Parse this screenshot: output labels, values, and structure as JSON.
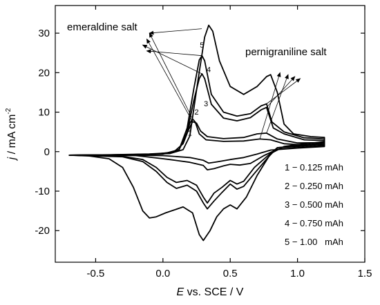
{
  "chart_data": {
    "type": "line",
    "xlabel": {
      "italic": "E",
      "rest": " vs. SCE / V"
    },
    "ylabel": {
      "italic": "j",
      "rest": " / mA cm",
      "sup": "-2"
    },
    "xlim": [
      -0.8,
      1.5
    ],
    "ylim": [
      -28,
      37
    ],
    "xticks": [
      -0.5,
      0.0,
      0.5,
      1.0,
      1.5
    ],
    "xtick_labels": [
      "-0.5",
      "0.0",
      "0.5",
      "1.0",
      "1.5"
    ],
    "yticks": [
      -20,
      -10,
      0,
      10,
      20,
      30
    ],
    "ytick_labels": [
      "-20",
      "-10",
      "0",
      "10",
      "20",
      "30"
    ],
    "annotations": {
      "emeraldine": "emeraldine salt",
      "pernigraniline": "pernigraniline salt"
    },
    "legend": [
      "1 − 0.125 mAh",
      "2 − 0.250 mAh",
      "3 − 0.500 mAh",
      "4 − 0.750 mAh",
      "5 − 1.00   mAh"
    ],
    "series": [
      {
        "name": "1",
        "anodic": [
          [
            -0.7,
            -0.9
          ],
          [
            -0.4,
            -0.8
          ],
          [
            -0.1,
            -0.6
          ],
          [
            0.05,
            -0.3
          ],
          [
            0.12,
            0.5
          ],
          [
            0.17,
            4.0
          ],
          [
            0.2,
            7.2
          ],
          [
            0.22,
            8.3
          ],
          [
            0.24,
            7.5
          ],
          [
            0.27,
            4.5
          ],
          [
            0.32,
            3.0
          ],
          [
            0.45,
            2.6
          ],
          [
            0.6,
            2.7
          ],
          [
            0.72,
            3.2
          ],
          [
            0.8,
            3.0
          ],
          [
            0.9,
            2.0
          ],
          [
            1.05,
            1.7
          ],
          [
            1.2,
            1.8
          ]
        ],
        "cathodic": [
          [
            1.2,
            1.3
          ],
          [
            1.0,
            0.9
          ],
          [
            0.8,
            0.4
          ],
          [
            0.7,
            -0.6
          ],
          [
            0.6,
            -1.5
          ],
          [
            0.5,
            -2.0
          ],
          [
            0.4,
            -2.6
          ],
          [
            0.34,
            -2.9
          ],
          [
            0.3,
            -2.2
          ],
          [
            0.2,
            -1.5
          ],
          [
            0.0,
            -1.0
          ],
          [
            -0.3,
            -0.9
          ],
          [
            -0.7,
            -0.9
          ]
        ]
      },
      {
        "name": "2",
        "anodic": [
          [
            -0.7,
            -0.9
          ],
          [
            -0.3,
            -0.8
          ],
          [
            -0.05,
            -0.6
          ],
          [
            0.08,
            -0.1
          ],
          [
            0.15,
            2.0
          ],
          [
            0.19,
            5.5
          ],
          [
            0.22,
            7.6
          ],
          [
            0.25,
            7.2
          ],
          [
            0.28,
            5.2
          ],
          [
            0.33,
            3.8
          ],
          [
            0.45,
            3.3
          ],
          [
            0.6,
            3.6
          ],
          [
            0.7,
            4.5
          ],
          [
            0.77,
            4.7
          ],
          [
            0.85,
            3.2
          ],
          [
            1.0,
            2.2
          ],
          [
            1.2,
            2.3
          ]
        ],
        "cathodic": [
          [
            1.2,
            1.6
          ],
          [
            1.0,
            1.0
          ],
          [
            0.85,
            0.6
          ],
          [
            0.75,
            -1.0
          ],
          [
            0.65,
            -3.0
          ],
          [
            0.57,
            -3.4
          ],
          [
            0.5,
            -3.2
          ],
          [
            0.45,
            -3.6
          ],
          [
            0.38,
            -4.3
          ],
          [
            0.33,
            -4.6
          ],
          [
            0.3,
            -3.5
          ],
          [
            0.2,
            -2.7
          ],
          [
            0.05,
            -2.0
          ],
          [
            -0.05,
            -1.6
          ],
          [
            -0.2,
            -1.0
          ],
          [
            -0.7,
            -0.9
          ]
        ]
      },
      {
        "name": "3",
        "anodic": [
          [
            -0.7,
            -0.9
          ],
          [
            -0.3,
            -0.8
          ],
          [
            0.0,
            -0.6
          ],
          [
            0.12,
            0.5
          ],
          [
            0.18,
            5.0
          ],
          [
            0.23,
            13.0
          ],
          [
            0.27,
            18.5
          ],
          [
            0.29,
            19.7
          ],
          [
            0.31,
            18.5
          ],
          [
            0.36,
            12.0
          ],
          [
            0.45,
            8.5
          ],
          [
            0.55,
            7.8
          ],
          [
            0.65,
            8.6
          ],
          [
            0.73,
            10.6
          ],
          [
            0.77,
            11.2
          ],
          [
            0.82,
            6.0
          ],
          [
            0.9,
            4.5
          ],
          [
            1.05,
            3.0
          ],
          [
            1.2,
            2.8
          ]
        ],
        "cathodic": [
          [
            1.2,
            1.9
          ],
          [
            1.0,
            1.3
          ],
          [
            0.85,
            1.0
          ],
          [
            0.78,
            -1.0
          ],
          [
            0.68,
            -4.0
          ],
          [
            0.6,
            -7.5
          ],
          [
            0.55,
            -8.2
          ],
          [
            0.5,
            -7.3
          ],
          [
            0.44,
            -9.0
          ],
          [
            0.38,
            -10.5
          ],
          [
            0.33,
            -13.0
          ],
          [
            0.3,
            -11.5
          ],
          [
            0.25,
            -8.5
          ],
          [
            0.18,
            -7.3
          ],
          [
            0.1,
            -7.8
          ],
          [
            0.03,
            -6.5
          ],
          [
            -0.05,
            -4.0
          ],
          [
            -0.15,
            -2.0
          ],
          [
            -0.3,
            -1.2
          ],
          [
            -0.7,
            -0.9
          ]
        ]
      },
      {
        "name": "4",
        "anodic": [
          [
            -0.7,
            -0.9
          ],
          [
            -0.3,
            -0.8
          ],
          [
            0.0,
            -0.6
          ],
          [
            0.12,
            0.5
          ],
          [
            0.18,
            6.0
          ],
          [
            0.23,
            16.0
          ],
          [
            0.27,
            23.2
          ],
          [
            0.29,
            24.3
          ],
          [
            0.31,
            23.0
          ],
          [
            0.36,
            14.5
          ],
          [
            0.45,
            10.0
          ],
          [
            0.55,
            9.0
          ],
          [
            0.65,
            9.6
          ],
          [
            0.73,
            11.6
          ],
          [
            0.77,
            12.1
          ],
          [
            0.81,
            7.5
          ],
          [
            0.9,
            5.0
          ],
          [
            1.05,
            3.5
          ],
          [
            1.2,
            3.2
          ]
        ],
        "cathodic": [
          [
            1.2,
            2.2
          ],
          [
            1.0,
            1.5
          ],
          [
            0.85,
            1.0
          ],
          [
            0.78,
            -1.5
          ],
          [
            0.68,
            -5.5
          ],
          [
            0.6,
            -8.8
          ],
          [
            0.55,
            -9.5
          ],
          [
            0.5,
            -8.2
          ],
          [
            0.44,
            -10.3
          ],
          [
            0.38,
            -12.5
          ],
          [
            0.33,
            -14.5
          ],
          [
            0.3,
            -13.0
          ],
          [
            0.25,
            -10.0
          ],
          [
            0.18,
            -8.5
          ],
          [
            0.1,
            -9.3
          ],
          [
            0.03,
            -7.8
          ],
          [
            -0.05,
            -5.0
          ],
          [
            -0.15,
            -2.5
          ],
          [
            -0.3,
            -1.3
          ],
          [
            -0.7,
            -0.9
          ]
        ]
      },
      {
        "name": "5",
        "anodic": [
          [
            -0.7,
            -0.9
          ],
          [
            -0.3,
            -0.8
          ],
          [
            0.05,
            -0.5
          ],
          [
            0.15,
            0.5
          ],
          [
            0.2,
            4.0
          ],
          [
            0.26,
            18.0
          ],
          [
            0.31,
            29.0
          ],
          [
            0.34,
            32.0
          ],
          [
            0.37,
            30.5
          ],
          [
            0.42,
            23.0
          ],
          [
            0.5,
            16.5
          ],
          [
            0.6,
            14.5
          ],
          [
            0.7,
            16.5
          ],
          [
            0.77,
            19.0
          ],
          [
            0.8,
            19.5
          ],
          [
            0.85,
            15.0
          ],
          [
            0.9,
            7.0
          ],
          [
            0.97,
            4.5
          ],
          [
            1.1,
            3.8
          ],
          [
            1.2,
            3.6
          ]
        ],
        "cathodic": [
          [
            1.2,
            2.5
          ],
          [
            1.0,
            1.8
          ],
          [
            0.9,
            1.3
          ],
          [
            0.8,
            -0.5
          ],
          [
            0.7,
            -6.0
          ],
          [
            0.62,
            -11.5
          ],
          [
            0.55,
            -14.5
          ],
          [
            0.5,
            -13.5
          ],
          [
            0.45,
            -14.5
          ],
          [
            0.4,
            -16.5
          ],
          [
            0.35,
            -20.0
          ],
          [
            0.3,
            -22.5
          ],
          [
            0.27,
            -21.0
          ],
          [
            0.22,
            -15.5
          ],
          [
            0.15,
            -14.0
          ],
          [
            0.08,
            -14.8
          ],
          [
            0.02,
            -15.5
          ],
          [
            -0.05,
            -16.5
          ],
          [
            -0.1,
            -16.8
          ],
          [
            -0.15,
            -15.0
          ],
          [
            -0.22,
            -9.0
          ],
          [
            -0.3,
            -4.0
          ],
          [
            -0.4,
            -1.8
          ],
          [
            -0.55,
            -1.1
          ],
          [
            -0.7,
            -0.9
          ]
        ]
      }
    ],
    "emeraldine_arrow_targets": [
      [
        -0.1,
        30.0
      ],
      [
        -0.12,
        28.5
      ],
      [
        -0.15,
        27.0
      ],
      [
        -0.12,
        25.5
      ]
    ],
    "pernigraniline_arrow_targets": [
      [
        0.87,
        20.0
      ],
      [
        0.93,
        19.5
      ],
      [
        0.98,
        19.0
      ],
      [
        1.02,
        18.5
      ]
    ]
  }
}
